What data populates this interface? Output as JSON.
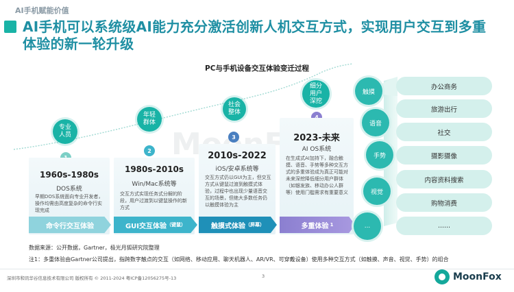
{
  "section_tag": "AI手机赋能价值",
  "headline": "AI手机可以系统级AI能力充分激活创新人机交互方式，实现用户交互到多重体验的新一轮升级",
  "chart_title": "PC与手机设备交互体验变迁过程",
  "watermark": "MoonFox",
  "stages": [
    {
      "num": "1",
      "bubble": "专业人员",
      "era": "1960s-1980s",
      "os": "DOS系统",
      "desc": "早期DOS系统面向专业开发者，操作均需由高度复杂的命令行实现完成",
      "band": "命令行交互体验",
      "band_sup": ""
    },
    {
      "num": "2",
      "bubble": "年轻群体",
      "era": "1980s-2010s",
      "os": "Win/Mac系统等",
      "desc": "交互方式实现任务式分解的阶段，用户过渡到以键鼠操作的新方式",
      "band": "GUI交互体验",
      "band_sup": "（键鼠）"
    },
    {
      "num": "3",
      "bubble": "社会整体",
      "era": "2010s-2022",
      "os": "iOS/安卓系统等",
      "desc": "交互方式仍以GUI为主，但交互方式从键鼠过渡到触摸式体验，过程中也出现少量语音交互的场景，但绝大多数任务仍以触摸体验为主",
      "band": "触摸式体验",
      "band_sup": "（屏幕）"
    },
    {
      "num": "4",
      "bubble": "细分用户深挖",
      "era": "2023-未来",
      "os": "AI OS系统",
      "desc": "在生成式AI加持下，融合触摸、语音、手势等多种交互方式的多重体验成为真正可能对未来深挖降低细分用户群体（如银发族、移动办公人群等）使用门槛需求有重要意义",
      "band": "多重体验",
      "band_sup": "1"
    }
  ],
  "modalities": [
    "触摸",
    "语音",
    "手势",
    "视觉",
    "..."
  ],
  "scenarios": [
    "办公商务",
    "旅游出行",
    "社交",
    "摄影摄像",
    "内容资料搜索",
    "购物消费",
    "......"
  ],
  "source": "数据来源：公开数据，Gartner，极光月狐研究院整理",
  "note": "注1：多重体验由Gartner公司提出，指跨数字触点的交互（如网络、移动应用、聊天机器人、AR/VR、可穿戴设备）使用多种交互方式（如触摸、声音、视觉、手势）的组合",
  "footer": "深圳市和讯华谷信息技术有限公司 版权所有 © 2011-2024 粤ICP备12056275号-13",
  "page_number": "3",
  "logo": "MoonFox",
  "colors": {
    "teal": "#19b3a6",
    "title": "#1f8fa3",
    "band_light": "#8fd3dd",
    "band_mid": "#3db4cb",
    "band_dark": "#1f90b8",
    "band_purple": "#8b7fd0"
  }
}
